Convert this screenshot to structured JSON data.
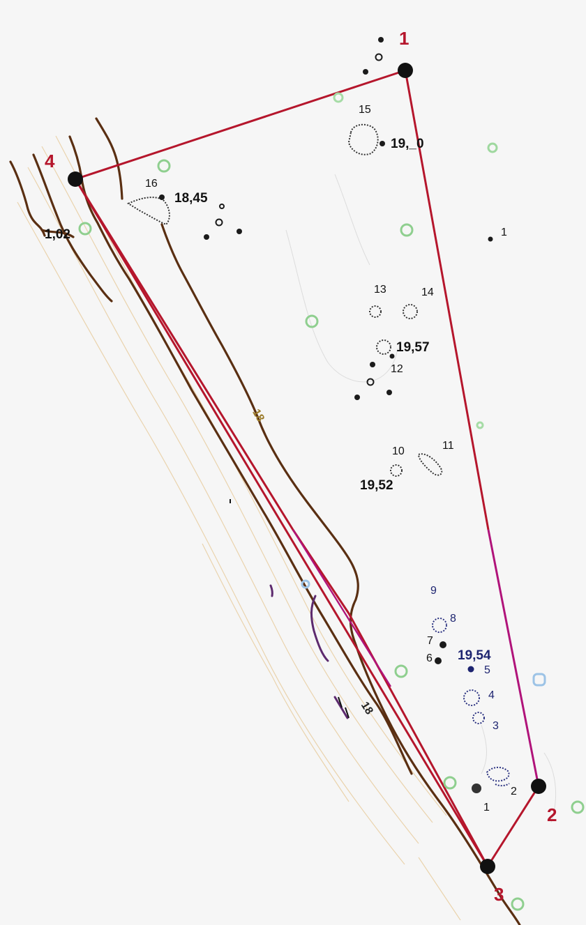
{
  "map": {
    "colors": {
      "boundary": "#b5162c",
      "boundary_east_lower": "#b0137a",
      "contour_main": "#5a2f12",
      "contour_purple": "#5d2a6e",
      "contour_faint": "#e9cfa6",
      "tree_green": "#8fcf8f",
      "tree_blue": "#9cc3e6",
      "feature_dark": "#1b1b1b"
    },
    "corners": [
      {
        "id": "corner-1",
        "label": "1"
      },
      {
        "id": "corner-2",
        "label": "2"
      },
      {
        "id": "corner-3",
        "label": "3"
      },
      {
        "id": "corner-4",
        "label": "4"
      }
    ],
    "elevations": {
      "e15": "19,_0",
      "e16": "18,45",
      "e12": "19,57",
      "e10": "19,52",
      "e_group": "19,54",
      "west_edge": "1,02"
    },
    "feature_numbers": {
      "n15": "15",
      "n16": "16",
      "n13": "13",
      "n14": "14",
      "n12": "12",
      "n10": "10",
      "n11": "11",
      "n9": "9",
      "n8": "8",
      "n7": "7",
      "n6": "6",
      "n5": "5",
      "n4": "4",
      "n3": "3",
      "n2": "2",
      "n1": "1",
      "n1_east": "1"
    },
    "contour_labels": {
      "c18_upper": "18",
      "c18_lower": "18"
    }
  }
}
